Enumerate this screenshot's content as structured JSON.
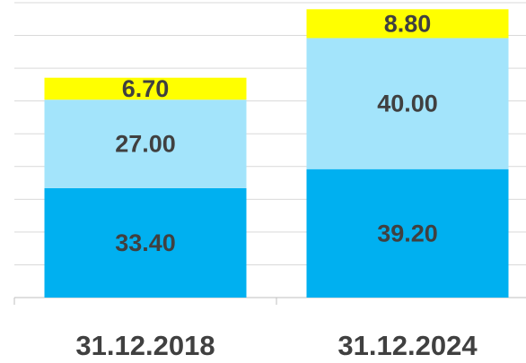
{
  "chart_data": {
    "type": "stacked_bar",
    "categories": [
      "31.12.2018",
      "31.12.2024"
    ],
    "series": [
      {
        "color": "#00b0f0",
        "values": [
          33.4,
          39.2
        ],
        "value_labels": [
          "33.40",
          "39.20"
        ]
      },
      {
        "color": "#a3e4fb",
        "values": [
          27.0,
          40.0
        ],
        "value_labels": [
          "27.00",
          "40.00"
        ]
      },
      {
        "color": "#ffff00",
        "values": [
          6.7,
          8.8
        ],
        "value_labels": [
          "6.70",
          "8.80"
        ]
      }
    ],
    "ylim": [
      0,
      90
    ],
    "yticks": [
      0,
      10,
      20,
      30,
      40,
      50,
      60,
      70,
      80,
      90
    ],
    "grid": true
  }
}
